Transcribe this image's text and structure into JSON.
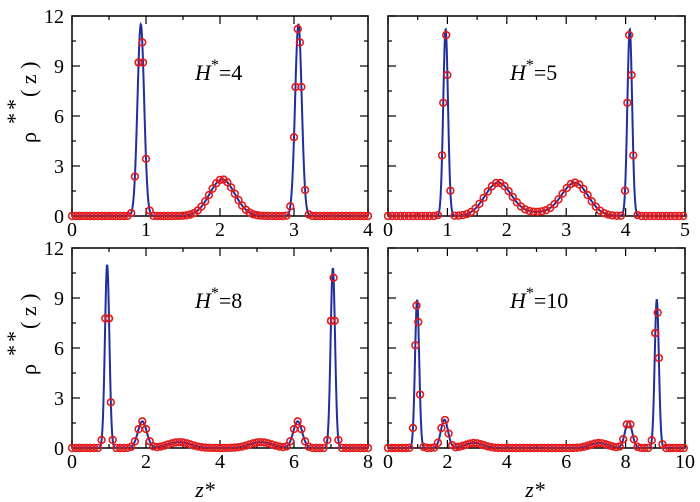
{
  "colors": {
    "line": "#1f2f9c",
    "marker": "#e41a1c",
    "axis": "#000000",
    "background": "#ffffff"
  },
  "ylabel_text": {
    "rho": "ρ",
    "star_top": "*",
    "star_sub": "*",
    "paren": "( z )"
  },
  "xlabel": "z*",
  "chart_data": [
    {
      "type": "line",
      "annotation": {
        "var": "H",
        "sup": "*",
        "value": "=4"
      },
      "xlim": [
        0,
        4
      ],
      "ylim": [
        0,
        12
      ],
      "xticks": [
        0,
        1,
        2,
        3,
        4
      ],
      "yticks": [
        0,
        3,
        6,
        9,
        12
      ],
      "peaks": [
        {
          "x": 0.93,
          "height": 11.5,
          "width": 0.045
        },
        {
          "x": 3.06,
          "height": 11.5,
          "width": 0.045
        },
        {
          "x": 2.03,
          "height": 2.2,
          "width": 0.17
        }
      ],
      "marker_step": 0.05,
      "marker_extra": [
        0.9,
        0.96,
        3.02,
        3.08
      ],
      "y_axis_side": "left"
    },
    {
      "type": "line",
      "annotation": {
        "var": "H",
        "sup": "*",
        "value": "=5"
      },
      "xlim": [
        0,
        5
      ],
      "ylim": [
        0,
        12
      ],
      "xticks": [
        0,
        1,
        2,
        3,
        4,
        5
      ],
      "yticks": [
        0,
        3,
        6,
        9,
        12
      ],
      "peaks": [
        {
          "x": 0.97,
          "height": 11.2,
          "width": 0.04
        },
        {
          "x": 4.07,
          "height": 11.2,
          "width": 0.04
        },
        {
          "x": 1.85,
          "height": 1.95,
          "width": 0.22
        },
        {
          "x": 3.15,
          "height": 1.95,
          "width": 0.22
        },
        {
          "x": 2.5,
          "height": 0.2,
          "width": 0.4
        }
      ],
      "marker_step": 0.07,
      "marker_extra": [
        0.93,
        1.0,
        4.03,
        4.1
      ],
      "y_axis_side": "none"
    },
    {
      "type": "line",
      "annotation": {
        "var": "H",
        "sup": "*",
        "value": "=8"
      },
      "xlim": [
        0,
        8
      ],
      "ylim": [
        0,
        12
      ],
      "xticks": [
        0,
        2,
        4,
        6,
        8
      ],
      "yticks": [
        0,
        3,
        6,
        9,
        12
      ],
      "peaks": [
        {
          "x": 0.95,
          "height": 11.0,
          "width": 0.06
        },
        {
          "x": 7.05,
          "height": 10.8,
          "width": 0.06
        },
        {
          "x": 1.9,
          "height": 1.6,
          "width": 0.12
        },
        {
          "x": 6.1,
          "height": 1.6,
          "width": 0.12
        },
        {
          "x": 2.9,
          "height": 0.35,
          "width": 0.3
        },
        {
          "x": 5.1,
          "height": 0.35,
          "width": 0.3
        }
      ],
      "marker_step": 0.1,
      "marker_extra": [
        1.0,
        1.05,
        7.0,
        7.07
      ],
      "y_axis_side": "left"
    },
    {
      "type": "line",
      "annotation": {
        "var": "H",
        "sup": "*",
        "value": "=10"
      },
      "xlim": [
        0,
        10
      ],
      "ylim": [
        0,
        12
      ],
      "xticks": [
        0,
        2,
        4,
        6,
        8,
        10
      ],
      "yticks": [
        0,
        3,
        6,
        9,
        12
      ],
      "peaks": [
        {
          "x": 0.98,
          "height": 8.9,
          "width": 0.07
        },
        {
          "x": 9.05,
          "height": 8.9,
          "width": 0.07
        },
        {
          "x": 1.9,
          "height": 1.7,
          "width": 0.12
        },
        {
          "x": 8.1,
          "height": 1.6,
          "width": 0.12
        },
        {
          "x": 2.9,
          "height": 0.3,
          "width": 0.3
        },
        {
          "x": 7.1,
          "height": 0.3,
          "width": 0.3
        }
      ],
      "marker_step": 0.12,
      "marker_extra": [
        0.92,
        1.02,
        9.0,
        9.08
      ],
      "y_axis_side": "none"
    }
  ]
}
